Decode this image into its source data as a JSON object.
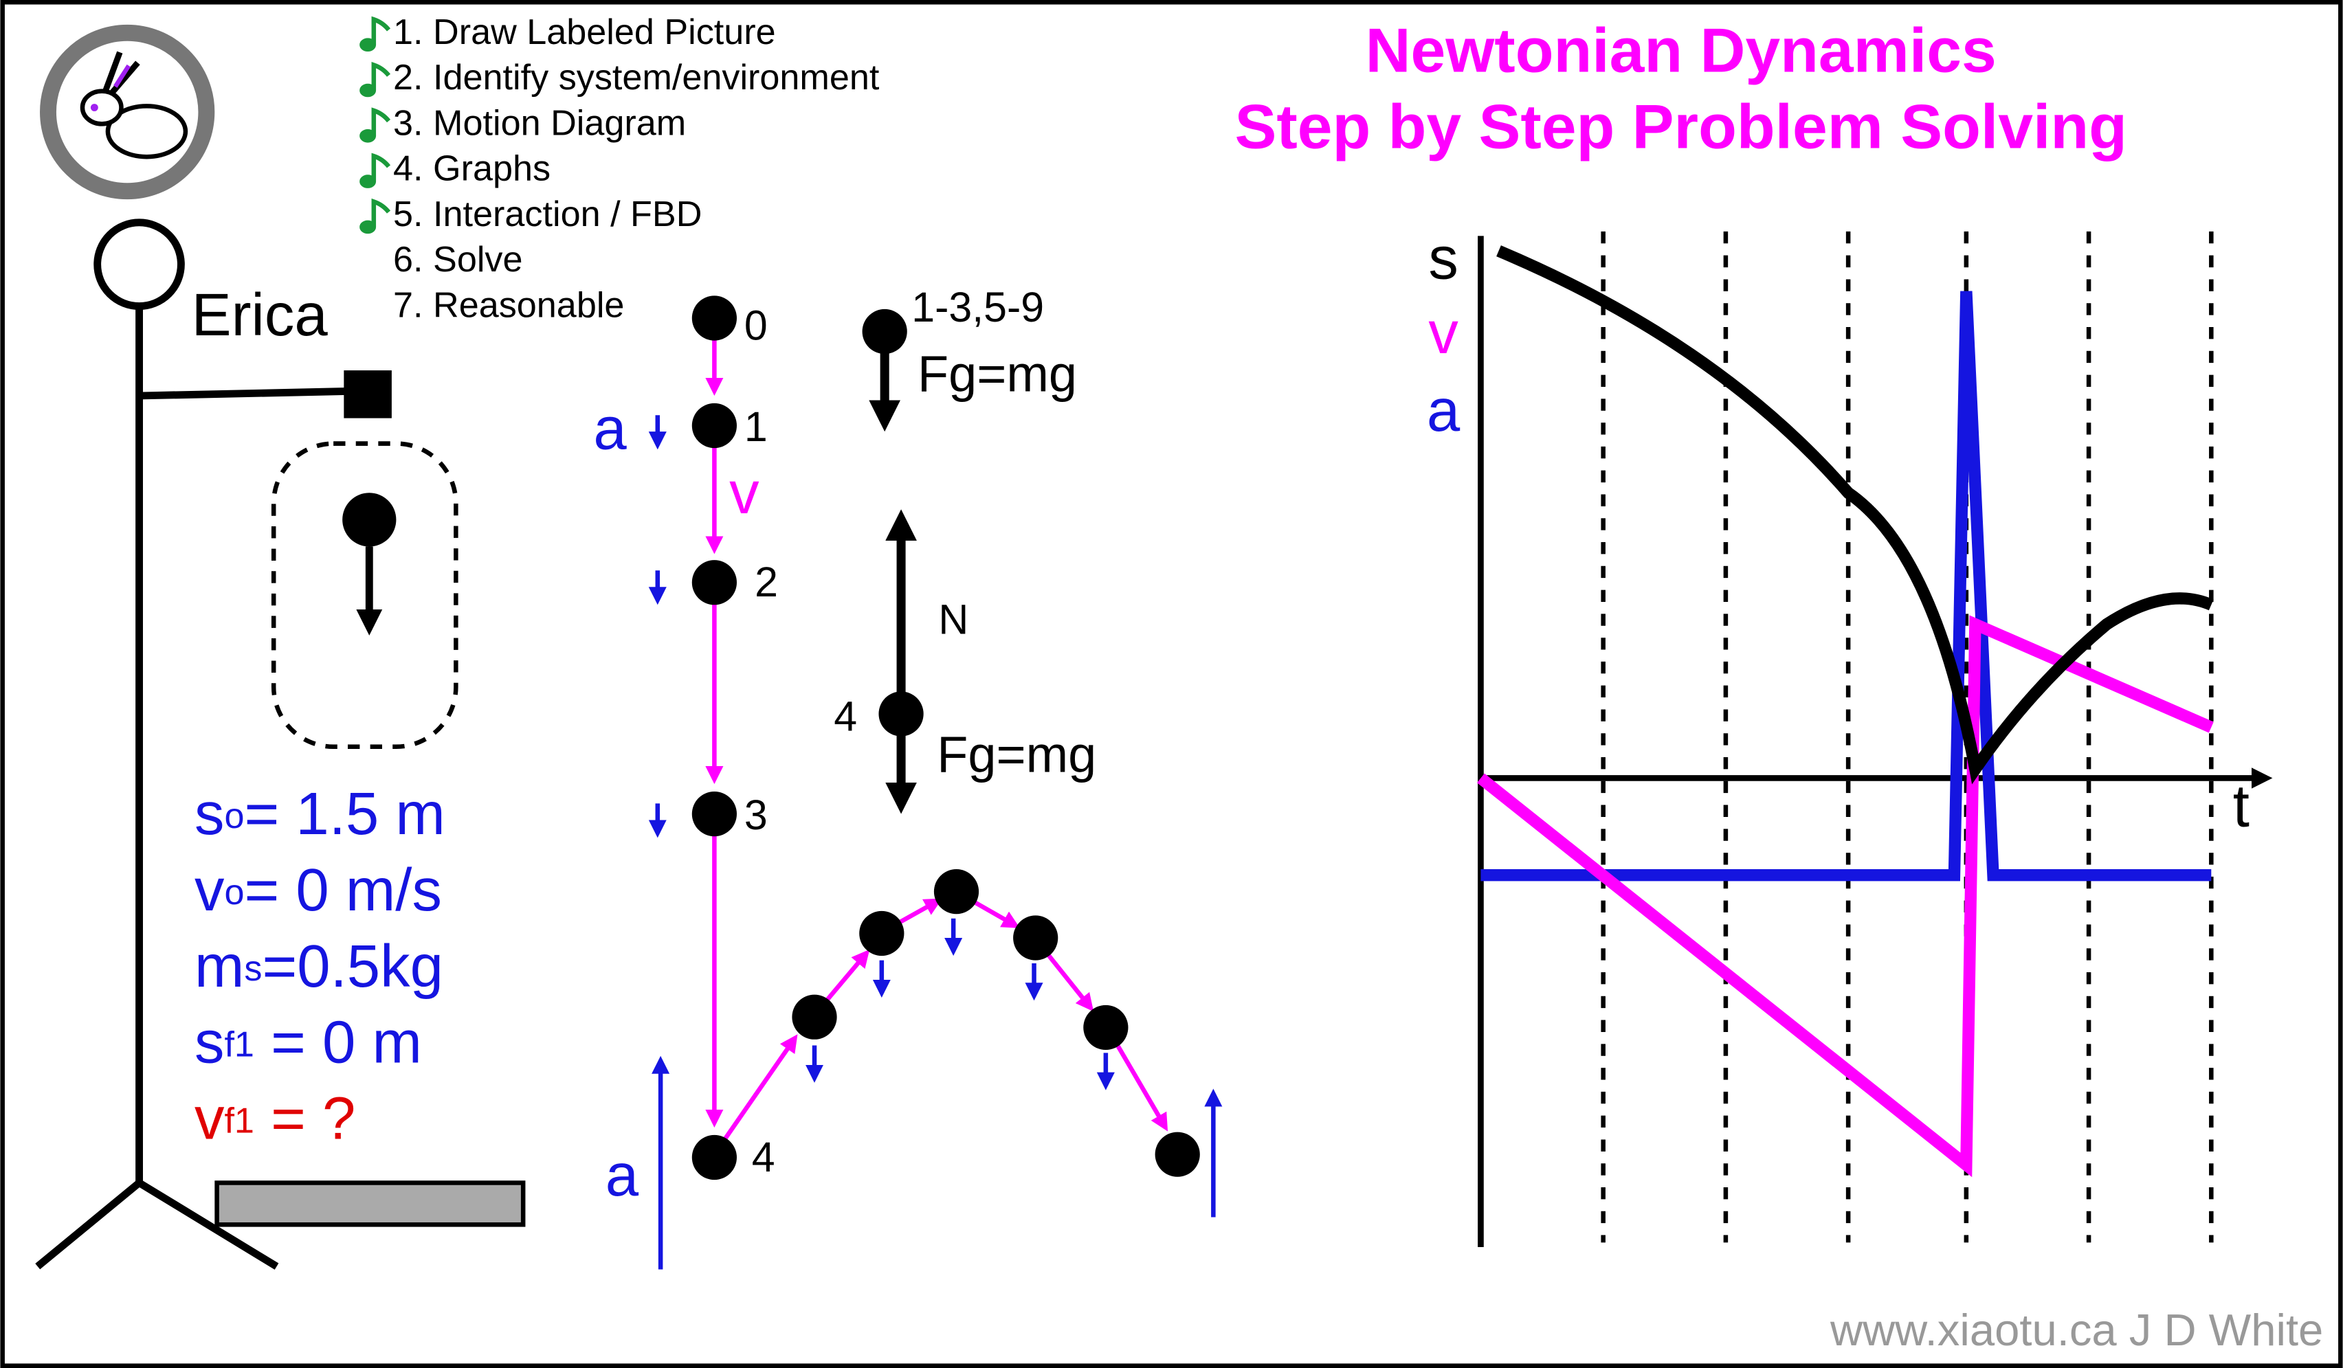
{
  "header": {
    "title_lines": [
      "Newtonian Dynamics",
      "Step by Step Problem Solving"
    ]
  },
  "steps": [
    {
      "label": "1. Draw Labeled Picture",
      "done": true
    },
    {
      "label": "2. Identify system/environment",
      "done": true
    },
    {
      "label": "3. Motion Diagram",
      "done": true
    },
    {
      "label": "4. Graphs",
      "done": true
    },
    {
      "label": "5. Interaction / FBD",
      "done": true
    },
    {
      "label": "6. Solve",
      "done": false
    },
    {
      "label": "7. Reasonable",
      "done": false
    }
  ],
  "picture": {
    "name": "Erica",
    "givens": [
      {
        "symbol": "s",
        "sub": "o",
        "text": "= 1.5 m",
        "color": "#1515e0"
      },
      {
        "symbol": "v",
        "sub": "o",
        "text": "= 0 m/s",
        "color": "#1515e0"
      },
      {
        "symbol": "m",
        "sub": "s",
        "text": "=0.5kg",
        "color": "#1515e0"
      },
      {
        "symbol": "s",
        "sub": "f1",
        "text": " = 0 m",
        "color": "#1515e0"
      },
      {
        "symbol": "v",
        "sub": "f1",
        "text": " = ?",
        "color": "#e00000"
      }
    ]
  },
  "motion_diagram": {
    "positions": [
      "0",
      "1",
      "2",
      "3",
      "4"
    ],
    "accel_label": "a",
    "velocity_label": "v",
    "bounce_accel_label": "a"
  },
  "fbd": {
    "air": {
      "label": "1-3,5-9",
      "force": "Fg=mg"
    },
    "ground": {
      "label": "4",
      "normal": "N",
      "force": "Fg=mg"
    }
  },
  "graph": {
    "labels": [
      "s",
      "v",
      "a"
    ],
    "time_label": "t"
  },
  "footer": "www.xiaotu.ca J D White"
}
